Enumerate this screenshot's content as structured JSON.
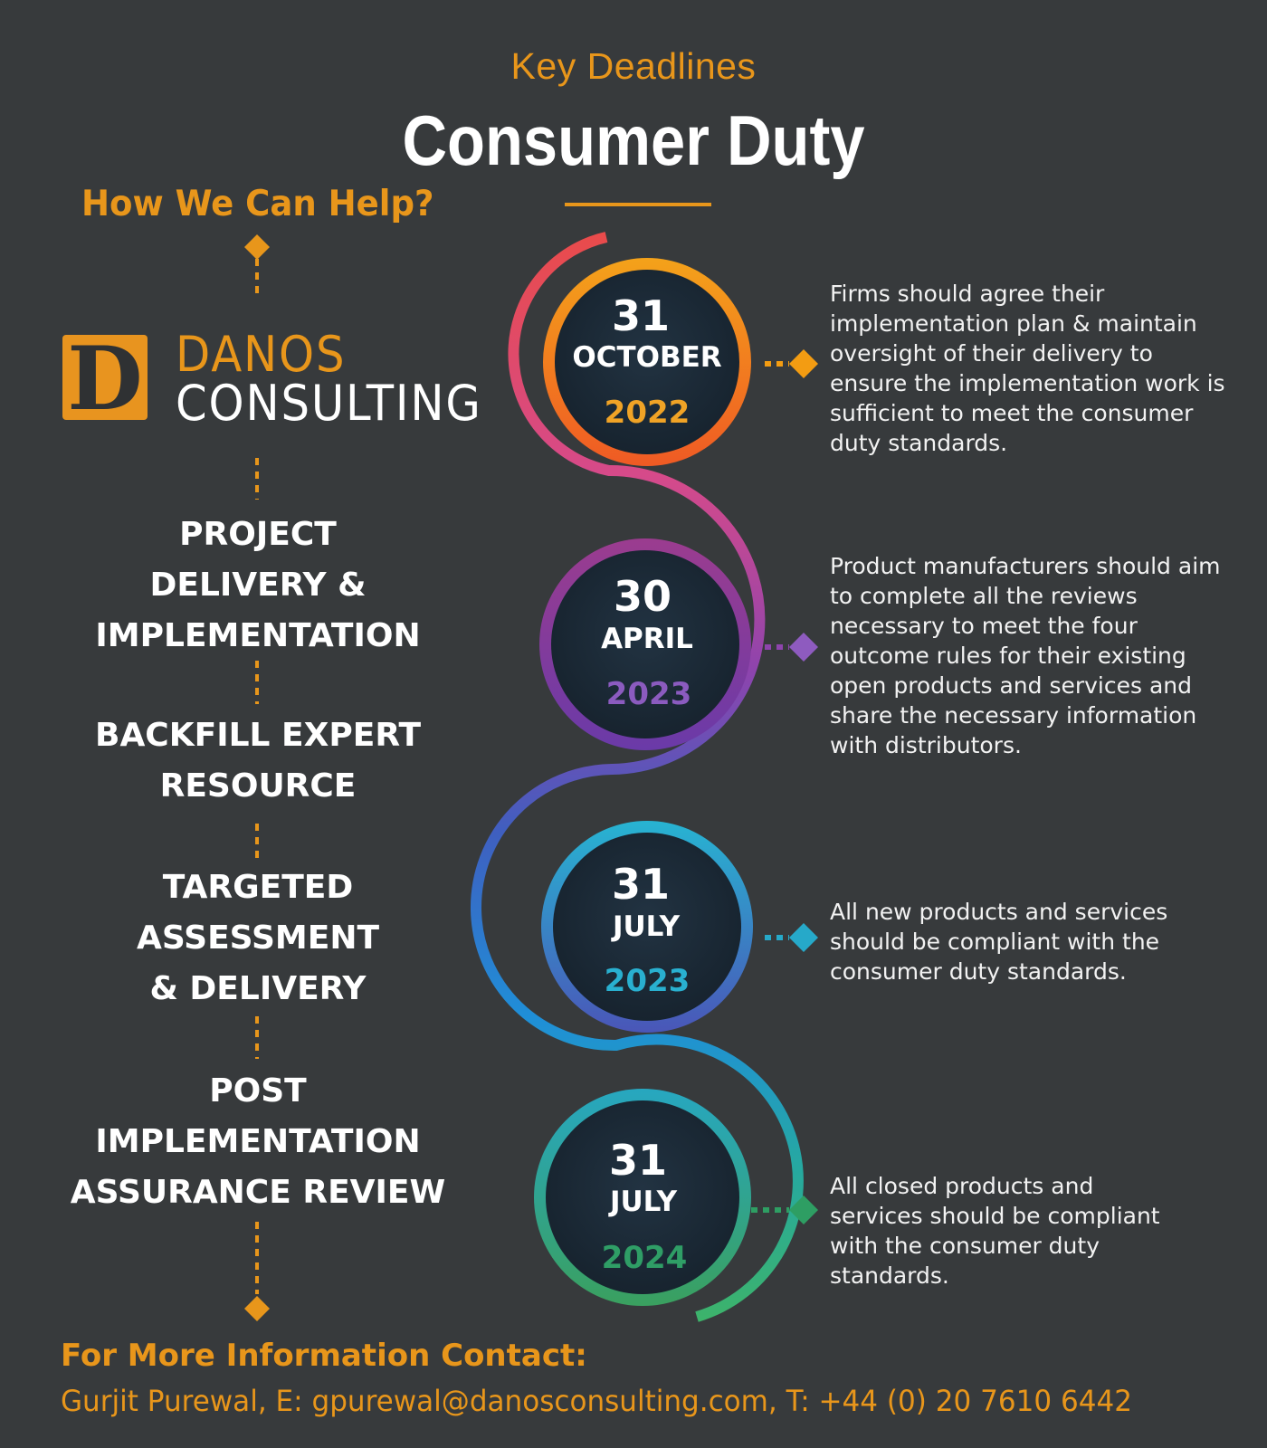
{
  "header": {
    "kicker": "Key Deadlines",
    "title": "Consumer Duty"
  },
  "help": {
    "heading": "How We Can Help?",
    "logo": {
      "letter": "D",
      "line1": "DANOS",
      "line2": "CONSULTING"
    },
    "services": [
      {
        "lines": [
          "PROJECT",
          "DELIVERY &",
          "IMPLEMENTATION"
        ]
      },
      {
        "lines": [
          "BACKFILL EXPERT",
          "RESOURCE"
        ]
      },
      {
        "lines": [
          "TARGETED",
          "ASSESSMENT",
          "& DELIVERY"
        ]
      },
      {
        "lines": [
          "POST",
          "IMPLEMENTATION",
          "ASSURANCE REVIEW"
        ]
      }
    ]
  },
  "deadlines": [
    {
      "day": "31",
      "month": "OCTOBER",
      "year": "2022",
      "color": "#f39c12",
      "year_color": "#f0a326",
      "description": "Firms should agree their implementation plan & maintain oversight of their delivery to ensure the implementation work is sufficient to meet the consumer duty standards."
    },
    {
      "day": "30",
      "month": "APRIL",
      "year": "2023",
      "color": "#8e44ad",
      "year_color": "#8b5bbf",
      "description": "Product manufacturers should aim to complete all the reviews necessary to meet the four outcome rules for their existing open products and services and share the necessary information with distributors."
    },
    {
      "day": "31",
      "month": "JULY",
      "year": "2023",
      "color": "#26a9c9",
      "year_color": "#29b0d0",
      "description": "All new products and services should be compliant with the consumer duty standards."
    },
    {
      "day": "31",
      "month": "JULY",
      "year": "2024",
      "color": "#2e9e63",
      "year_color": "#2f9e66",
      "description": "All closed products and services should be compliant with the consumer duty standards."
    }
  ],
  "contact": {
    "heading": "For More Information Contact:",
    "details": "Gurjit Purewal, E: gpurewal@danosconsulting.com, T: +44 (0) 20 7610 6442"
  },
  "colors": {
    "background": "#373a3c",
    "accent": "#e8961b"
  }
}
